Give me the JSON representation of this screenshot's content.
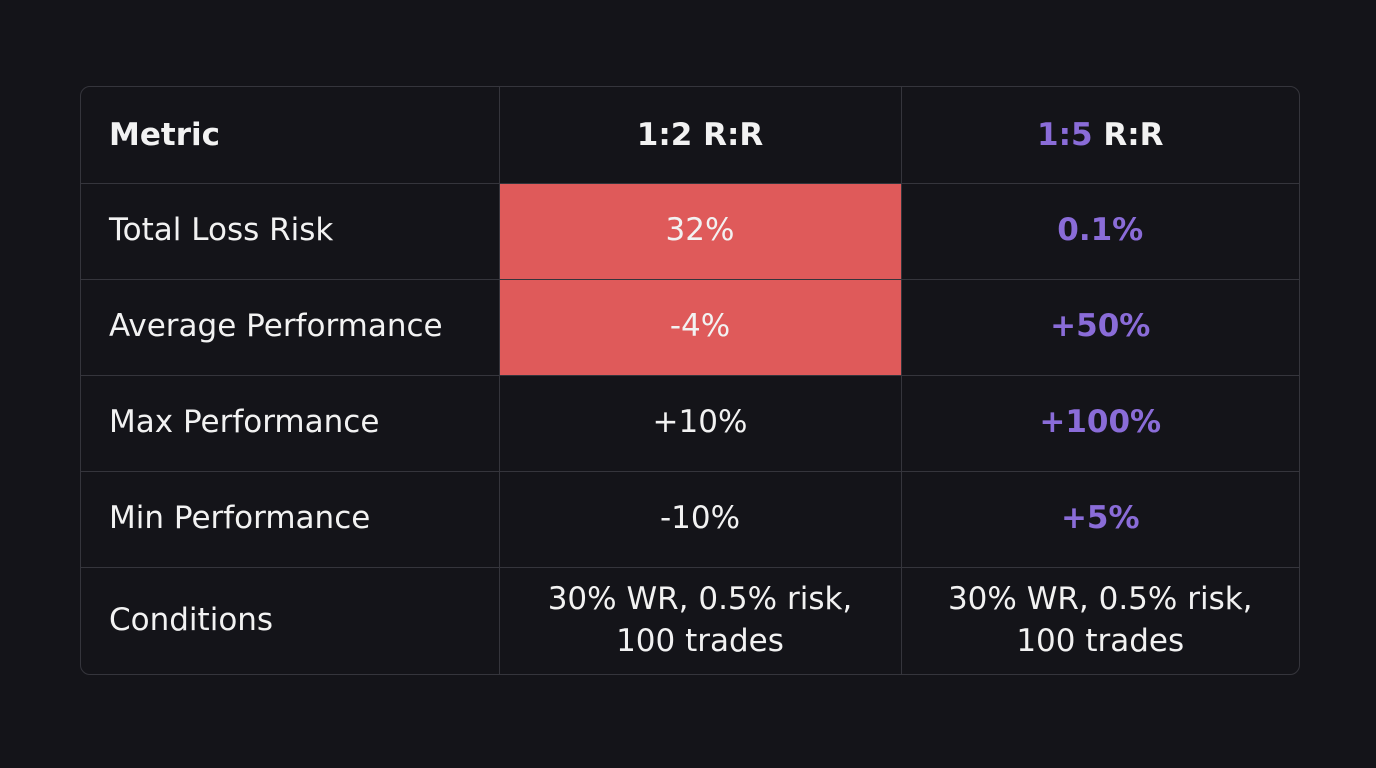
{
  "table": {
    "header": [
      "Metric",
      "1:2 R:R",
      [
        "1:5",
        "R:R"
      ]
    ],
    "rows": [
      [
        "Total Loss Risk",
        "32%",
        "0.1%"
      ],
      [
        "Average Performance",
        "-4%",
        "+50%"
      ],
      [
        "Max Performance",
        "+10%",
        "+100%"
      ],
      [
        "Min Performance",
        "-10%",
        "+5%"
      ],
      [
        "Conditions",
        "30% WR, 0.5% risk, 100 trades",
        "30% WR, 0.5% risk, 100 trades"
      ]
    ]
  }
}
